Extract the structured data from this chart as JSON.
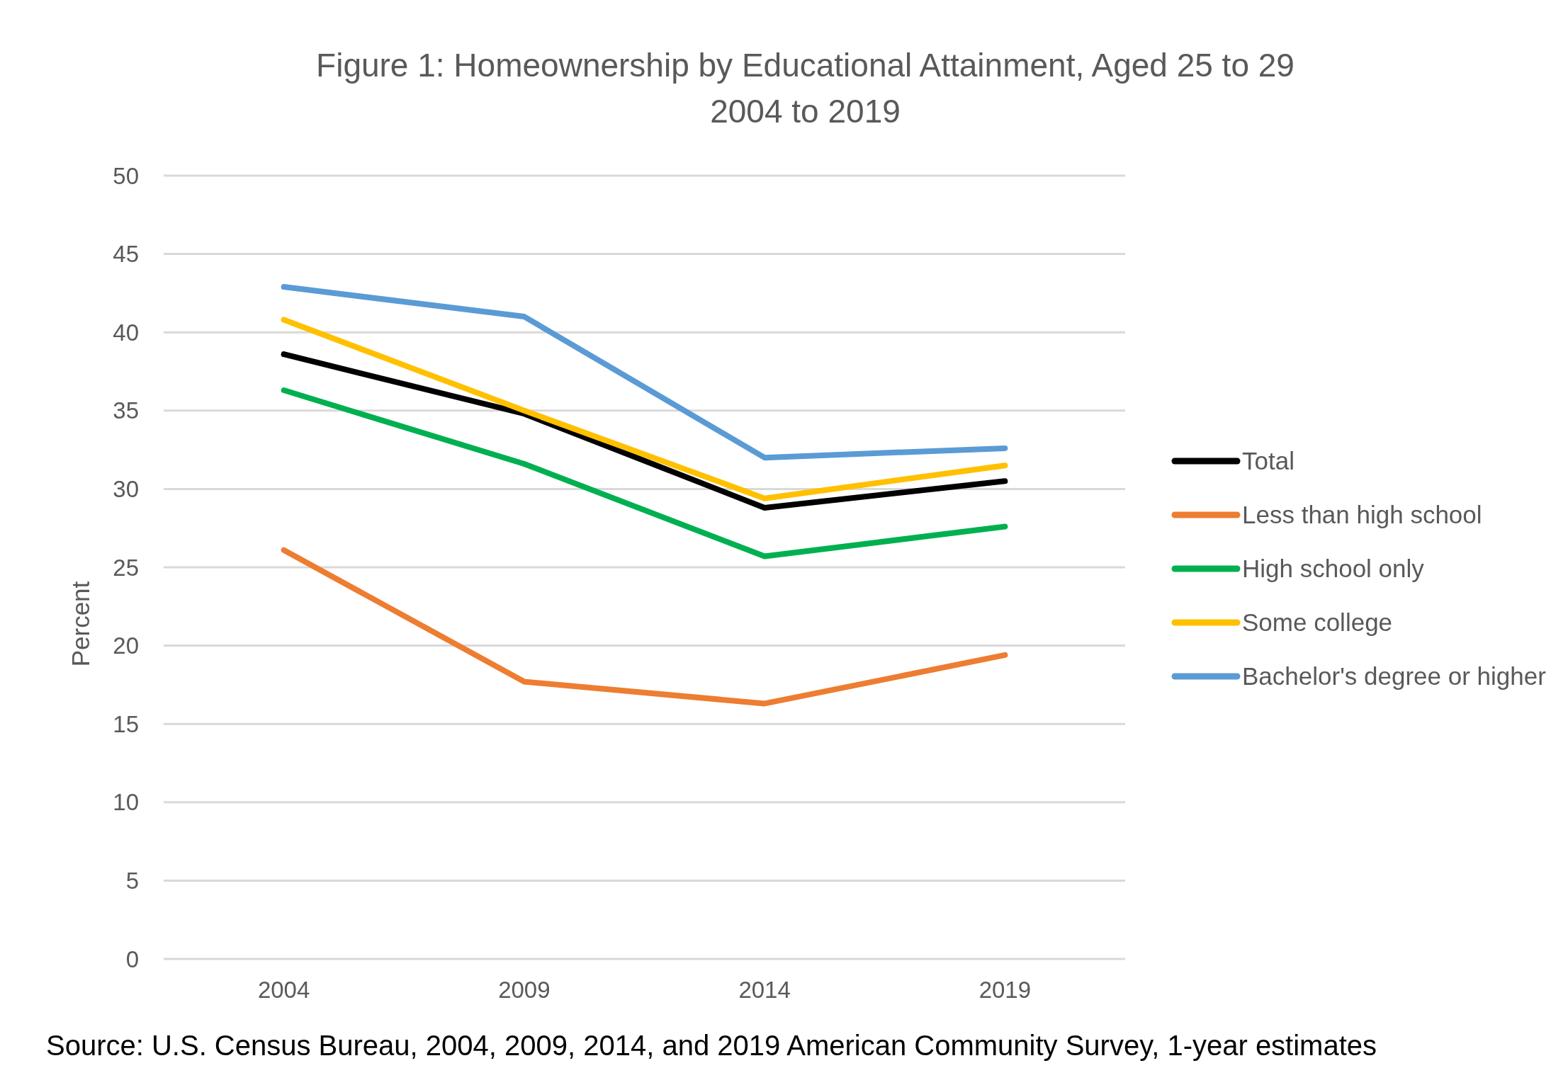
{
  "chart_data": {
    "type": "line",
    "title": "Figure 1: Homeownership by Educational Attainment, Aged 25 to 29",
    "subtitle": "2004 to 2019",
    "ylabel": "Percent",
    "annotations": [
      "Source: U.S. Census Bureau, 2004, 2009, 2014, and 2019 American Community Survey, 1-year estimates"
    ],
    "categories": [
      "2004",
      "2009",
      "2014",
      "2019"
    ],
    "series": [
      {
        "name": "Total",
        "color": "#000000",
        "values": [
          38.6,
          34.8,
          28.8,
          30.5
        ]
      },
      {
        "name": "Less than high school",
        "color": "#ed7d31",
        "values": [
          26.1,
          17.7,
          16.3,
          19.4
        ]
      },
      {
        "name": "High school only",
        "color": "#00b050",
        "values": [
          36.3,
          31.6,
          25.7,
          27.6
        ]
      },
      {
        "name": "Some college",
        "color": "#ffc000",
        "values": [
          40.8,
          35.0,
          29.4,
          31.5
        ]
      },
      {
        "name": "Bachelor's degree or higher",
        "color": "#5b9bd5",
        "values": [
          42.9,
          41.0,
          32.0,
          32.6
        ]
      }
    ],
    "ylim": [
      0,
      50
    ],
    "yticks": [
      0,
      5,
      10,
      15,
      20,
      25,
      30,
      35,
      40,
      45,
      50
    ],
    "grid": "y",
    "legend": "right",
    "marker": "none",
    "line_style": "solid"
  }
}
